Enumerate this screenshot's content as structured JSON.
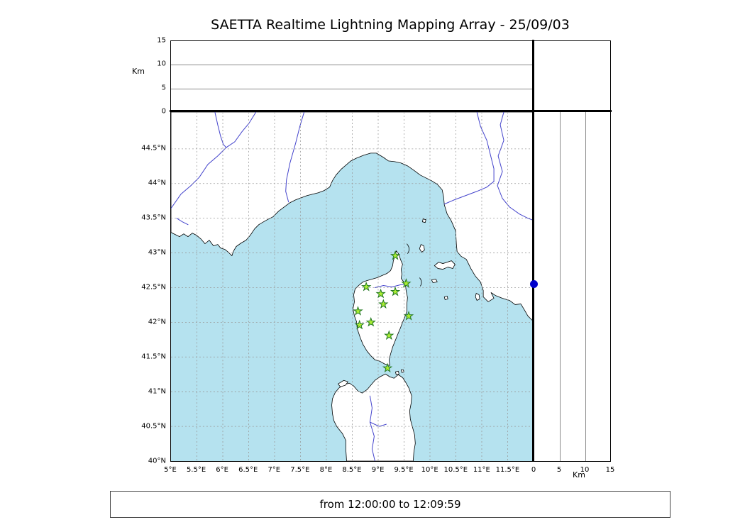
{
  "title": "SAETTA Realtime Lightning Mapping Array - 25/09/03",
  "footer": {
    "time_range": "from 12:00:00 to 12:09:59"
  },
  "altitude_axis": {
    "label": "Km",
    "max": 15,
    "ticks": [
      {
        "v": 0,
        "label": "0"
      },
      {
        "v": 5,
        "label": "5"
      },
      {
        "v": 10,
        "label": "10"
      },
      {
        "v": 15,
        "label": "15"
      }
    ],
    "gridlines": [
      5,
      10
    ]
  },
  "map_axes": {
    "lon_range": [
      5,
      12
    ],
    "lat_range": [
      40,
      45.03
    ],
    "lon_ticks": [
      {
        "v": 5,
        "label": "5°E"
      },
      {
        "v": 5.5,
        "label": "5.5°E"
      },
      {
        "v": 6,
        "label": "6°E"
      },
      {
        "v": 6.5,
        "label": "6.5°E"
      },
      {
        "v": 7,
        "label": "7°E"
      },
      {
        "v": 7.5,
        "label": "7.5°E"
      },
      {
        "v": 8,
        "label": "8°E"
      },
      {
        "v": 8.5,
        "label": "8.5°E"
      },
      {
        "v": 9,
        "label": "9°E"
      },
      {
        "v": 9.5,
        "label": "9.5°E"
      },
      {
        "v": 10,
        "label": "10°E"
      },
      {
        "v": 10.5,
        "label": "10.5°E"
      },
      {
        "v": 11,
        "label": "11°E"
      },
      {
        "v": 11.5,
        "label": "11.5°E"
      }
    ],
    "lat_ticks": [
      {
        "v": 40,
        "label": "40°N"
      },
      {
        "v": 40.5,
        "label": "40.5°N"
      },
      {
        "v": 41,
        "label": "41°N"
      },
      {
        "v": 41.5,
        "label": "41.5°N"
      },
      {
        "v": 42,
        "label": "42°N"
      },
      {
        "v": 42.5,
        "label": "42.5°N"
      },
      {
        "v": 43,
        "label": "43°N"
      },
      {
        "v": 43.5,
        "label": "43.5°N"
      },
      {
        "v": 44,
        "label": "44°N"
      },
      {
        "v": 44.5,
        "label": "44.5°N"
      }
    ]
  },
  "right_panel": {
    "km_label": "Km",
    "max": 15,
    "ticks": [
      {
        "v": 0,
        "label": "0"
      },
      {
        "v": 5,
        "label": "5"
      },
      {
        "v": 10,
        "label": "10"
      },
      {
        "v": 15,
        "label": "15"
      }
    ],
    "gridlines": [
      5,
      10
    ],
    "dot": {
      "lat": 42.55,
      "km": 0
    }
  },
  "stations": [
    {
      "lon": 9.33,
      "lat": 42.96
    },
    {
      "lon": 8.77,
      "lat": 42.51
    },
    {
      "lon": 9.05,
      "lat": 42.41
    },
    {
      "lon": 9.33,
      "lat": 42.44
    },
    {
      "lon": 9.54,
      "lat": 42.56
    },
    {
      "lon": 9.1,
      "lat": 42.26
    },
    {
      "lon": 8.61,
      "lat": 42.16
    },
    {
      "lon": 8.64,
      "lat": 41.96
    },
    {
      "lon": 8.86,
      "lat": 42.0
    },
    {
      "lon": 9.59,
      "lat": 42.09
    },
    {
      "lon": 9.21,
      "lat": 41.81
    },
    {
      "lon": 9.18,
      "lat": 41.34
    }
  ],
  "colors": {
    "sea": "#b5e2ef",
    "land": "#ffffff",
    "coast": "#000000",
    "river": "#4444cc",
    "grid": "#999999",
    "star_fill": "#aaee33",
    "star_stroke": "#227722",
    "dot": "#0000cc"
  }
}
